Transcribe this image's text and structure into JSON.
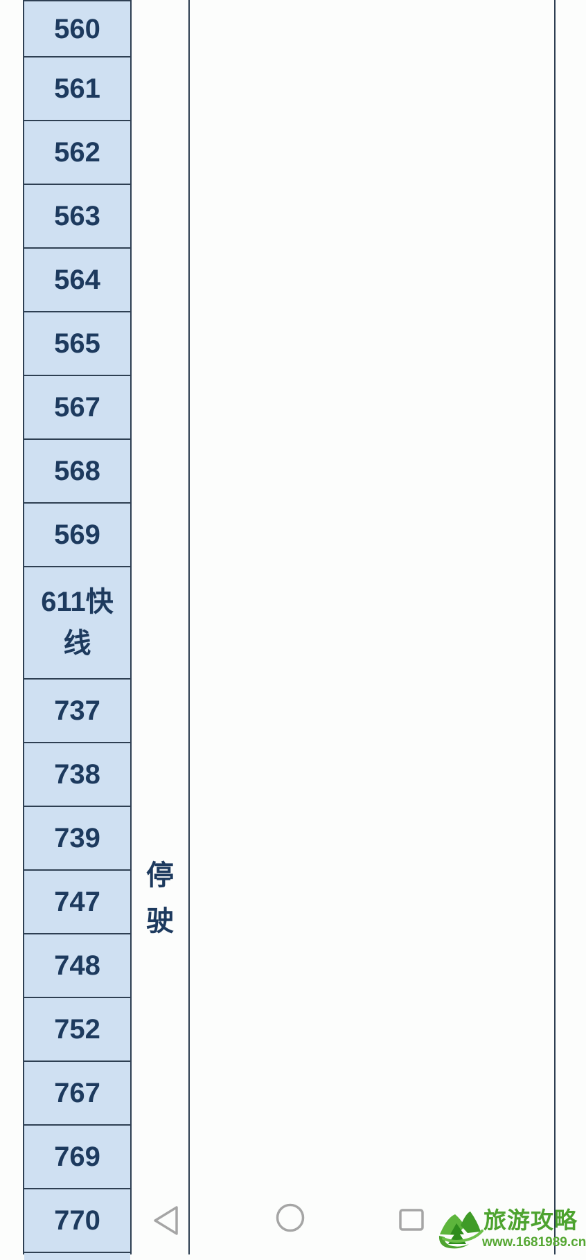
{
  "colors": {
    "page_bg": "#fcfdfc",
    "cell_bg": "#cfe0f2",
    "grid": "#2e3f52",
    "text": "#1d3a5e",
    "nav_icon": "#a5a5a5",
    "wm_green": "#4da32f",
    "wm_green2": "#55a733"
  },
  "table": {
    "routes": [
      "560",
      "561",
      "562",
      "563",
      "564",
      "565",
      "567",
      "568",
      "569",
      "611快线",
      "737",
      "738",
      "739",
      "747",
      "748",
      "752",
      "767",
      "769",
      "770"
    ],
    "status_label": "停驶"
  },
  "nav": {
    "back_icon": "back-triangle",
    "home_icon": "home-circle",
    "recents_icon": "recents-square"
  },
  "watermark": {
    "logo_icon": "travel-mountain-logo",
    "title": "旅游攻略",
    "url": "www.1681989.cn"
  }
}
